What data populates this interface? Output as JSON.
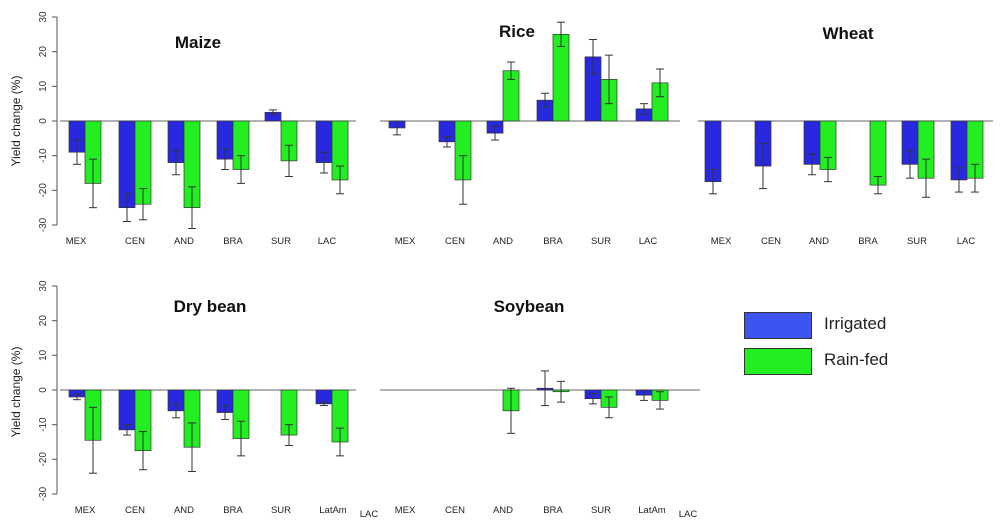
{
  "colors": {
    "irrigated": "#2828e0",
    "rainfed": "#22ee22",
    "axis": "#555555",
    "error": "#333333"
  },
  "y_axis": {
    "label": "Yield change (%)",
    "ticks": [
      -30,
      -20,
      -10,
      0,
      10,
      20,
      30
    ]
  },
  "legend": {
    "irrigated_label": "Irrigated",
    "rainfed_label": "Rain-fed"
  },
  "extra_labels": {
    "lac_bottom_left": "LAC",
    "lac_bottom_right": "LAC"
  },
  "chart_data": [
    {
      "type": "bar",
      "title": "Maize",
      "ylabel": "Yield change (%)",
      "ylim": [
        -30,
        30
      ],
      "categories": [
        "MEX",
        "CEN",
        "AND",
        "BRA",
        "SUR",
        "LAC"
      ],
      "series": [
        {
          "name": "Irrigated",
          "values": [
            -9,
            -25,
            -12,
            -11,
            2.5,
            -12
          ],
          "errors": [
            3.5,
            4,
            3.5,
            3,
            0.7,
            3
          ]
        },
        {
          "name": "Rain-fed",
          "values": [
            -18,
            -24,
            -25,
            -14,
            -11.5,
            -17
          ],
          "errors": [
            7,
            4.5,
            6,
            4,
            4.5,
            4
          ]
        }
      ]
    },
    {
      "type": "bar",
      "title": "Rice",
      "ylim": [
        -30,
        30
      ],
      "categories": [
        "MEX",
        "CEN",
        "AND",
        "BRA",
        "SUR",
        "LAC"
      ],
      "series": [
        {
          "name": "Irrigated",
          "values": [
            -2,
            -6,
            -3.5,
            6,
            18.5,
            3.5
          ],
          "errors": [
            2,
            1.5,
            2,
            2,
            5,
            1.5
          ]
        },
        {
          "name": "Rain-fed",
          "values": [
            null,
            -17,
            14.5,
            25,
            12,
            11
          ],
          "errors": [
            0,
            7,
            2.5,
            3.5,
            7,
            4
          ]
        }
      ]
    },
    {
      "type": "bar",
      "title": "Wheat",
      "ylim": [
        -30,
        30
      ],
      "categories": [
        "MEX",
        "CEN",
        "AND",
        "BRA",
        "SUR",
        "LAC"
      ],
      "series": [
        {
          "name": "Irrigated",
          "values": [
            -17.5,
            -13,
            -12.5,
            null,
            -12.5,
            -17
          ],
          "errors": [
            3.5,
            6.5,
            3,
            0,
            4,
            3.5
          ]
        },
        {
          "name": "Rain-fed",
          "values": [
            null,
            null,
            -14,
            -18.5,
            -16.5,
            -16.5
          ],
          "errors": [
            0,
            0,
            3.5,
            2.5,
            5.5,
            4
          ]
        }
      ]
    },
    {
      "type": "bar",
      "title": "Dry bean",
      "ylim": [
        -30,
        30
      ],
      "categories": [
        "MEX",
        "CEN",
        "AND",
        "BRA",
        "SUR",
        "LatAm"
      ],
      "series": [
        {
          "name": "Irrigated",
          "values": [
            -2,
            -11.5,
            -6,
            -6.5,
            null,
            -4
          ],
          "errors": [
            0.8,
            1.5,
            2,
            2,
            0,
            0.5
          ]
        },
        {
          "name": "Rain-fed",
          "values": [
            -14.5,
            -17.5,
            -16.5,
            -14,
            -13,
            -15
          ],
          "errors": [
            9.5,
            5.5,
            7,
            5,
            3,
            4
          ]
        }
      ]
    },
    {
      "type": "bar",
      "title": "Soybean",
      "ylim": [
        -30,
        30
      ],
      "categories": [
        "MEX",
        "CEN",
        "AND",
        "BRA",
        "SUR",
        "LatAm"
      ],
      "series": [
        {
          "name": "Irrigated",
          "values": [
            null,
            null,
            null,
            0.5,
            -2.5,
            -1.5
          ],
          "errors": [
            0,
            0,
            0,
            5,
            1.5,
            1.5
          ]
        },
        {
          "name": "Rain-fed",
          "values": [
            null,
            null,
            -6,
            -0.5,
            -5,
            -3
          ],
          "errors": [
            0,
            0,
            6.5,
            3,
            3,
            2.5
          ]
        }
      ]
    }
  ]
}
